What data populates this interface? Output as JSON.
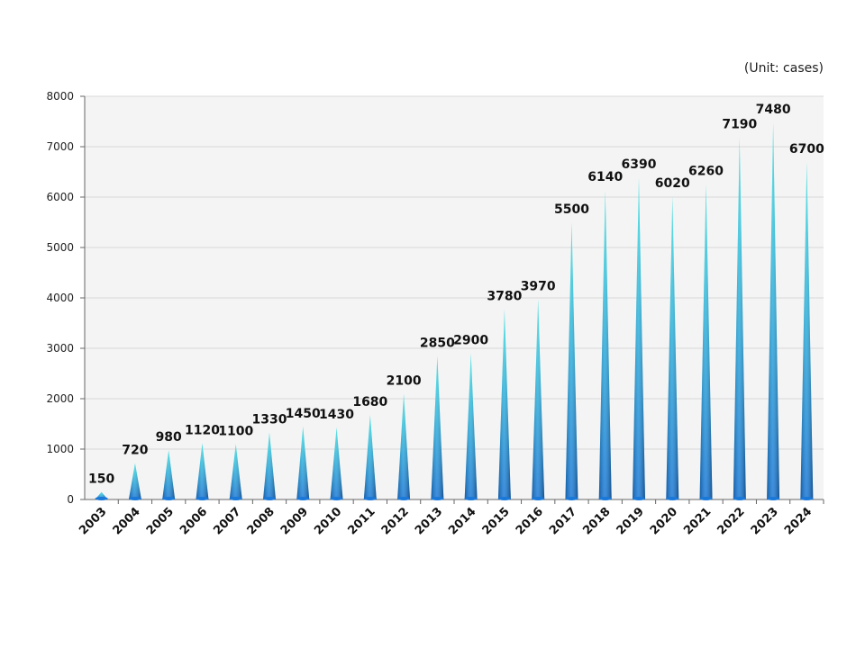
{
  "unit_label": "(Unit: cases)",
  "chart_data": {
    "type": "bar",
    "bar_shape": "cone",
    "categories": [
      "2003",
      "2004",
      "2005",
      "2006",
      "2007",
      "2008",
      "2009",
      "2010",
      "2011",
      "2012",
      "2013",
      "2014",
      "2015",
      "2016",
      "2017",
      "2018",
      "2019",
      "2020",
      "2021",
      "2022",
      "2023",
      "2024"
    ],
    "values": [
      150,
      720,
      980,
      1120,
      1100,
      1330,
      1450,
      1430,
      1680,
      2100,
      2850,
      2900,
      3780,
      3970,
      5500,
      6140,
      6390,
      6020,
      6260,
      7190,
      7480,
      6700
    ],
    "y_ticks": [
      "0",
      "1000",
      "2000",
      "3000",
      "4000",
      "5000",
      "6000",
      "7000",
      "8000"
    ],
    "ylim": [
      0,
      8000
    ],
    "grid": true,
    "colors": {
      "bar_top": "#3fe0e0",
      "bar_bottom": "#1a78d8",
      "grid": "#d9d9d9",
      "plot_bg": "#f4f4f4"
    }
  }
}
